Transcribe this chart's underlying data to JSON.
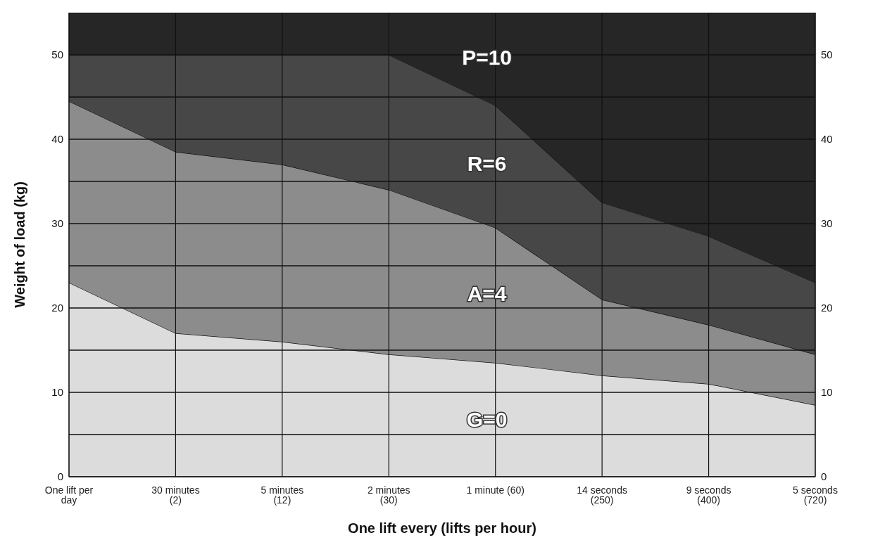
{
  "chart_data": {
    "type": "area",
    "stacked": true,
    "xlabel": "One lift every (lifts per hour)",
    "ylabel": "Weight of load (kg)",
    "categories": [
      "One lift per day",
      "30 minutes (2)",
      "5 minutes (12)",
      "2 minutes (30)",
      "1 minute (60)",
      "14 seconds (250)",
      "9 seconds (400)",
      "5 seconds (720)"
    ],
    "series": [
      {
        "name": "G=0",
        "color": "#dcdcdc",
        "values": [
          23,
          17,
          16,
          14.5,
          13.5,
          12,
          11,
          8.5
        ]
      },
      {
        "name": "A=4",
        "color": "#8c8c8c",
        "values": [
          21.5,
          21.5,
          21,
          19.5,
          16,
          9,
          7,
          6
        ]
      },
      {
        "name": "R=6",
        "color": "#474747",
        "values": [
          5.5,
          11.5,
          13,
          16,
          14.5,
          11.5,
          10.5,
          8.5
        ]
      },
      {
        "name": "P=10",
        "color": "#262626",
        "values": [
          5,
          5,
          5,
          5,
          11,
          22.5,
          26.5,
          32
        ]
      }
    ],
    "ylim": [
      0,
      55
    ],
    "yticks": [
      0,
      {
        "value": 5,
        "label": null
      },
      10,
      {
        "value": 15,
        "label": null
      },
      20,
      {
        "value": 25,
        "label": null
      },
      30,
      {
        "value": 35,
        "label": null
      },
      40,
      {
        "value": 45,
        "label": null
      },
      50
    ],
    "y2lim": [
      0,
      55
    ],
    "y2ticks": [
      0,
      {
        "value": 5,
        "label": null
      },
      10,
      {
        "value": 15,
        "label": null
      },
      20,
      {
        "value": 25,
        "label": null
      },
      30,
      {
        "value": 35,
        "label": null
      },
      40,
      {
        "value": 45,
        "label": null
      },
      50
    ],
    "grid": true,
    "marker": "none",
    "line_style": "solid"
  }
}
